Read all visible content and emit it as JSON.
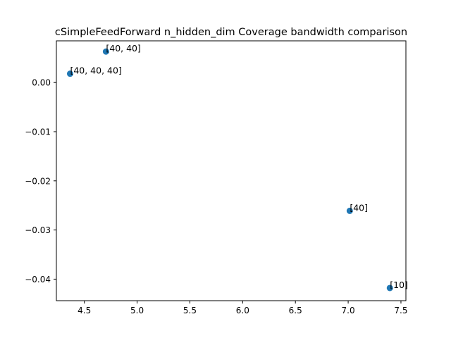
{
  "chart_data": {
    "type": "scatter",
    "title": "cSimpleFeedForward n_hidden_dim Coverage bandwidth comparison",
    "xlabel": "",
    "ylabel": "",
    "xlim": [
      4.235,
      7.547
    ],
    "ylim": [
      -0.04438,
      0.00848
    ],
    "xticks": [
      4.5,
      5.0,
      5.5,
      6.0,
      6.5,
      7.0,
      7.5
    ],
    "xtick_labels": [
      "4.5",
      "5.0",
      "5.5",
      "6.0",
      "6.5",
      "7.0",
      "7.5"
    ],
    "yticks": [
      0.0,
      -0.01,
      -0.02,
      -0.03,
      -0.04
    ],
    "ytick_labels": [
      "0.00",
      "−0.01",
      "−0.02",
      "−0.03",
      "−0.04"
    ],
    "grid": false,
    "marker_color": "#1f77b4",
    "points": [
      {
        "x": 4.705,
        "y": 0.0063,
        "label": "[40, 40]"
      },
      {
        "x": 4.365,
        "y": 0.0018,
        "label": "[40, 40, 40]"
      },
      {
        "x": 7.015,
        "y": -0.0261,
        "label": "[40]"
      },
      {
        "x": 7.395,
        "y": -0.0418,
        "label": "[10]"
      }
    ]
  }
}
